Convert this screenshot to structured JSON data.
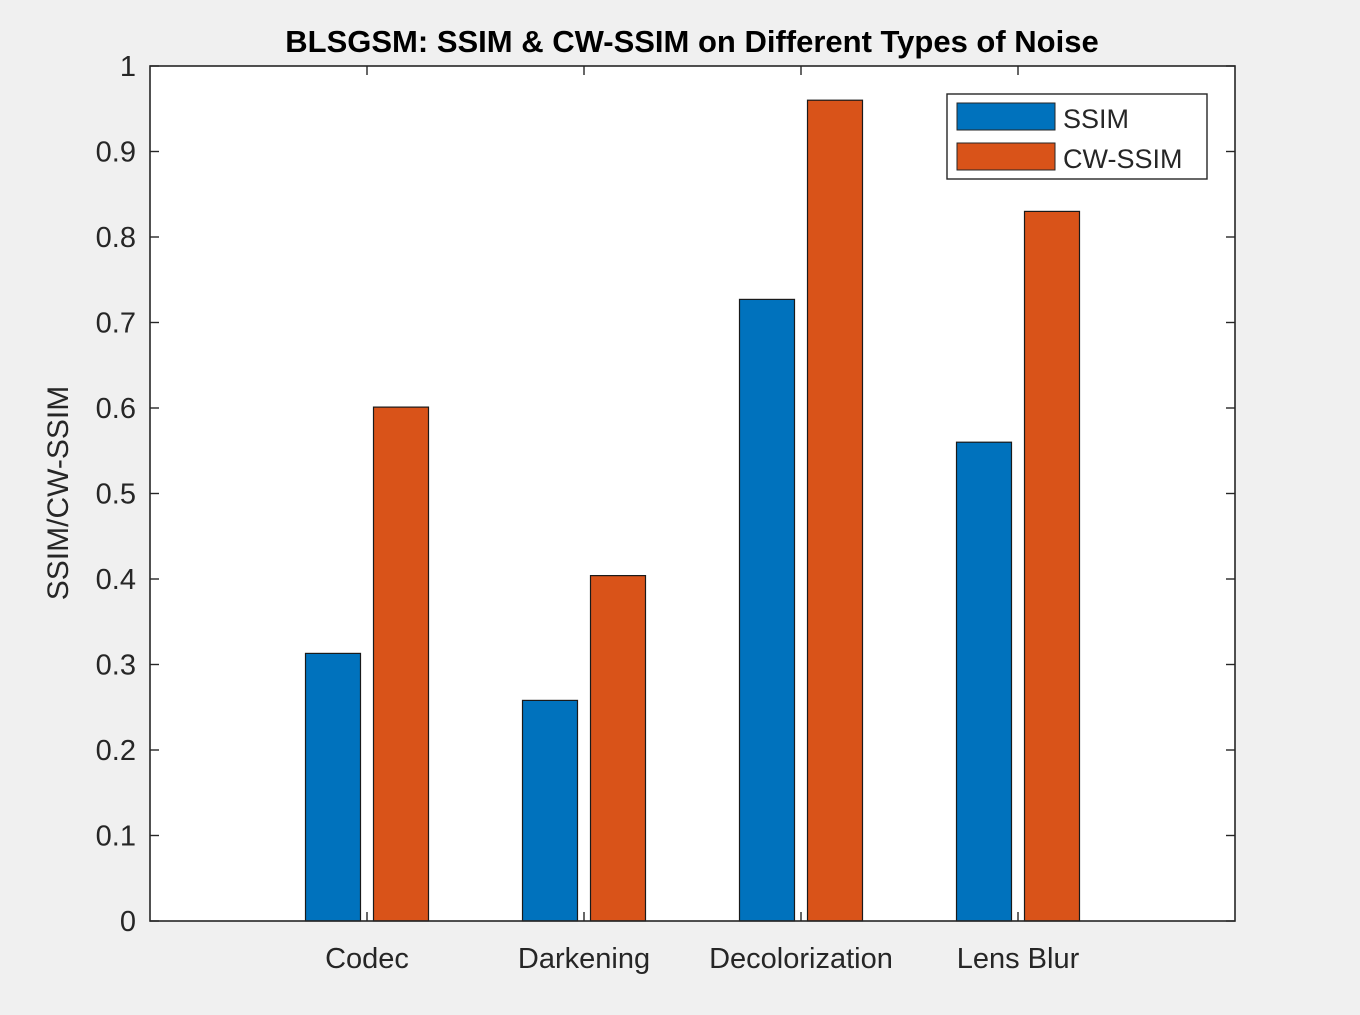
{
  "chart_data": {
    "type": "bar",
    "title": "BLSGSM: SSIM & CW-SSIM on Different Types of Noise",
    "xlabel": "",
    "ylabel": "SSIM/CW-SSIM",
    "categories": [
      "Codec",
      "Darkening",
      "Decolorization",
      "Lens Blur"
    ],
    "series": [
      {
        "name": "SSIM",
        "color": "#0072bd",
        "values": [
          0.313,
          0.258,
          0.727,
          0.56
        ]
      },
      {
        "name": "CW-SSIM",
        "color": "#d95319",
        "values": [
          0.601,
          0.404,
          0.96,
          0.83
        ]
      }
    ],
    "ylim": [
      0,
      1
    ],
    "yticks": [
      0,
      0.1,
      0.2,
      0.3,
      0.4,
      0.5,
      0.6,
      0.7,
      0.8,
      0.9,
      1
    ],
    "ytick_labels": [
      "0",
      "0.1",
      "0.2",
      "0.3",
      "0.4",
      "0.5",
      "0.6",
      "0.7",
      "0.8",
      "0.9",
      "1"
    ],
    "grid": false,
    "legend_position": "top-right"
  }
}
